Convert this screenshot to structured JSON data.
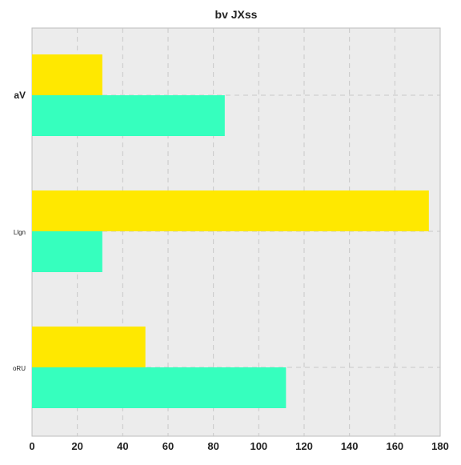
{
  "chart_data": {
    "type": "bar",
    "orientation": "horizontal",
    "title": "bv JXss",
    "xlabel": "",
    "ylabel": "",
    "categories": [
      "aV",
      "Llgn",
      "oRU"
    ],
    "series": [
      {
        "color": "#FFE800",
        "values": [
          31,
          175,
          50
        ]
      },
      {
        "color": "#36FFBE",
        "values": [
          85,
          31,
          112
        ]
      }
    ],
    "xlim": [
      0,
      180
    ],
    "xticks": [
      "0",
      "20",
      "40",
      "60",
      "80",
      "100",
      "120",
      "140",
      "160",
      "180"
    ],
    "grid": true,
    "legend": "none"
  }
}
